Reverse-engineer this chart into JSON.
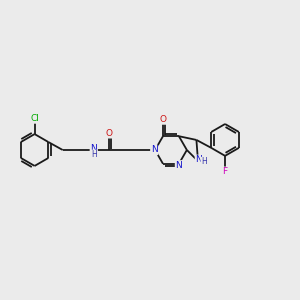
{
  "background_color": "#ebebeb",
  "bond_color": "#1a1a1a",
  "bond_width": 1.3,
  "atom_colors": {
    "N": "#1414cc",
    "O": "#cc1414",
    "Cl": "#00aa00",
    "F": "#cc00bb",
    "H_N": "#3333aa"
  },
  "figsize": [
    3.0,
    3.0
  ],
  "dpi": 100
}
